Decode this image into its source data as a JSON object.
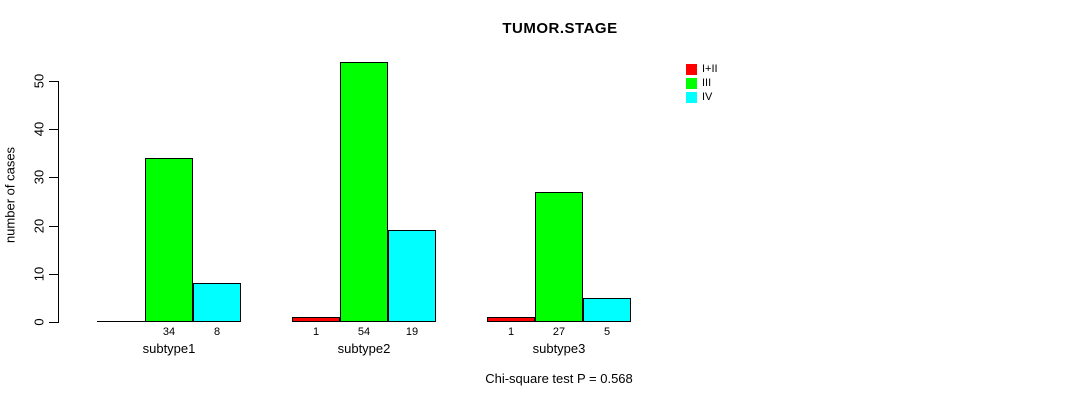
{
  "chart_data": {
    "type": "bar",
    "title": "TUMOR.STAGE",
    "xlabel": "",
    "ylabel": "number of cases",
    "ylim": [
      0,
      56
    ],
    "y_ticks": [
      0,
      10,
      20,
      30,
      40,
      50
    ],
    "grid": false,
    "legend_position": "right",
    "categories": [
      "subtype1",
      "subtype2",
      "subtype3"
    ],
    "series": [
      {
        "name": "I+II",
        "color": "#FF0000",
        "values": [
          0,
          1,
          1
        ]
      },
      {
        "name": "III",
        "color": "#00FF00",
        "values": [
          34,
          54,
          27
        ]
      },
      {
        "name": "IV",
        "color": "#00FFFF",
        "values": [
          8,
          19,
          5
        ]
      }
    ],
    "bar_value_labels": [
      [
        "",
        "34",
        "8"
      ],
      [
        "1",
        "54",
        "19"
      ],
      [
        "1",
        "27",
        "5"
      ]
    ],
    "annotation": "Chi-square test P = 0.568"
  }
}
